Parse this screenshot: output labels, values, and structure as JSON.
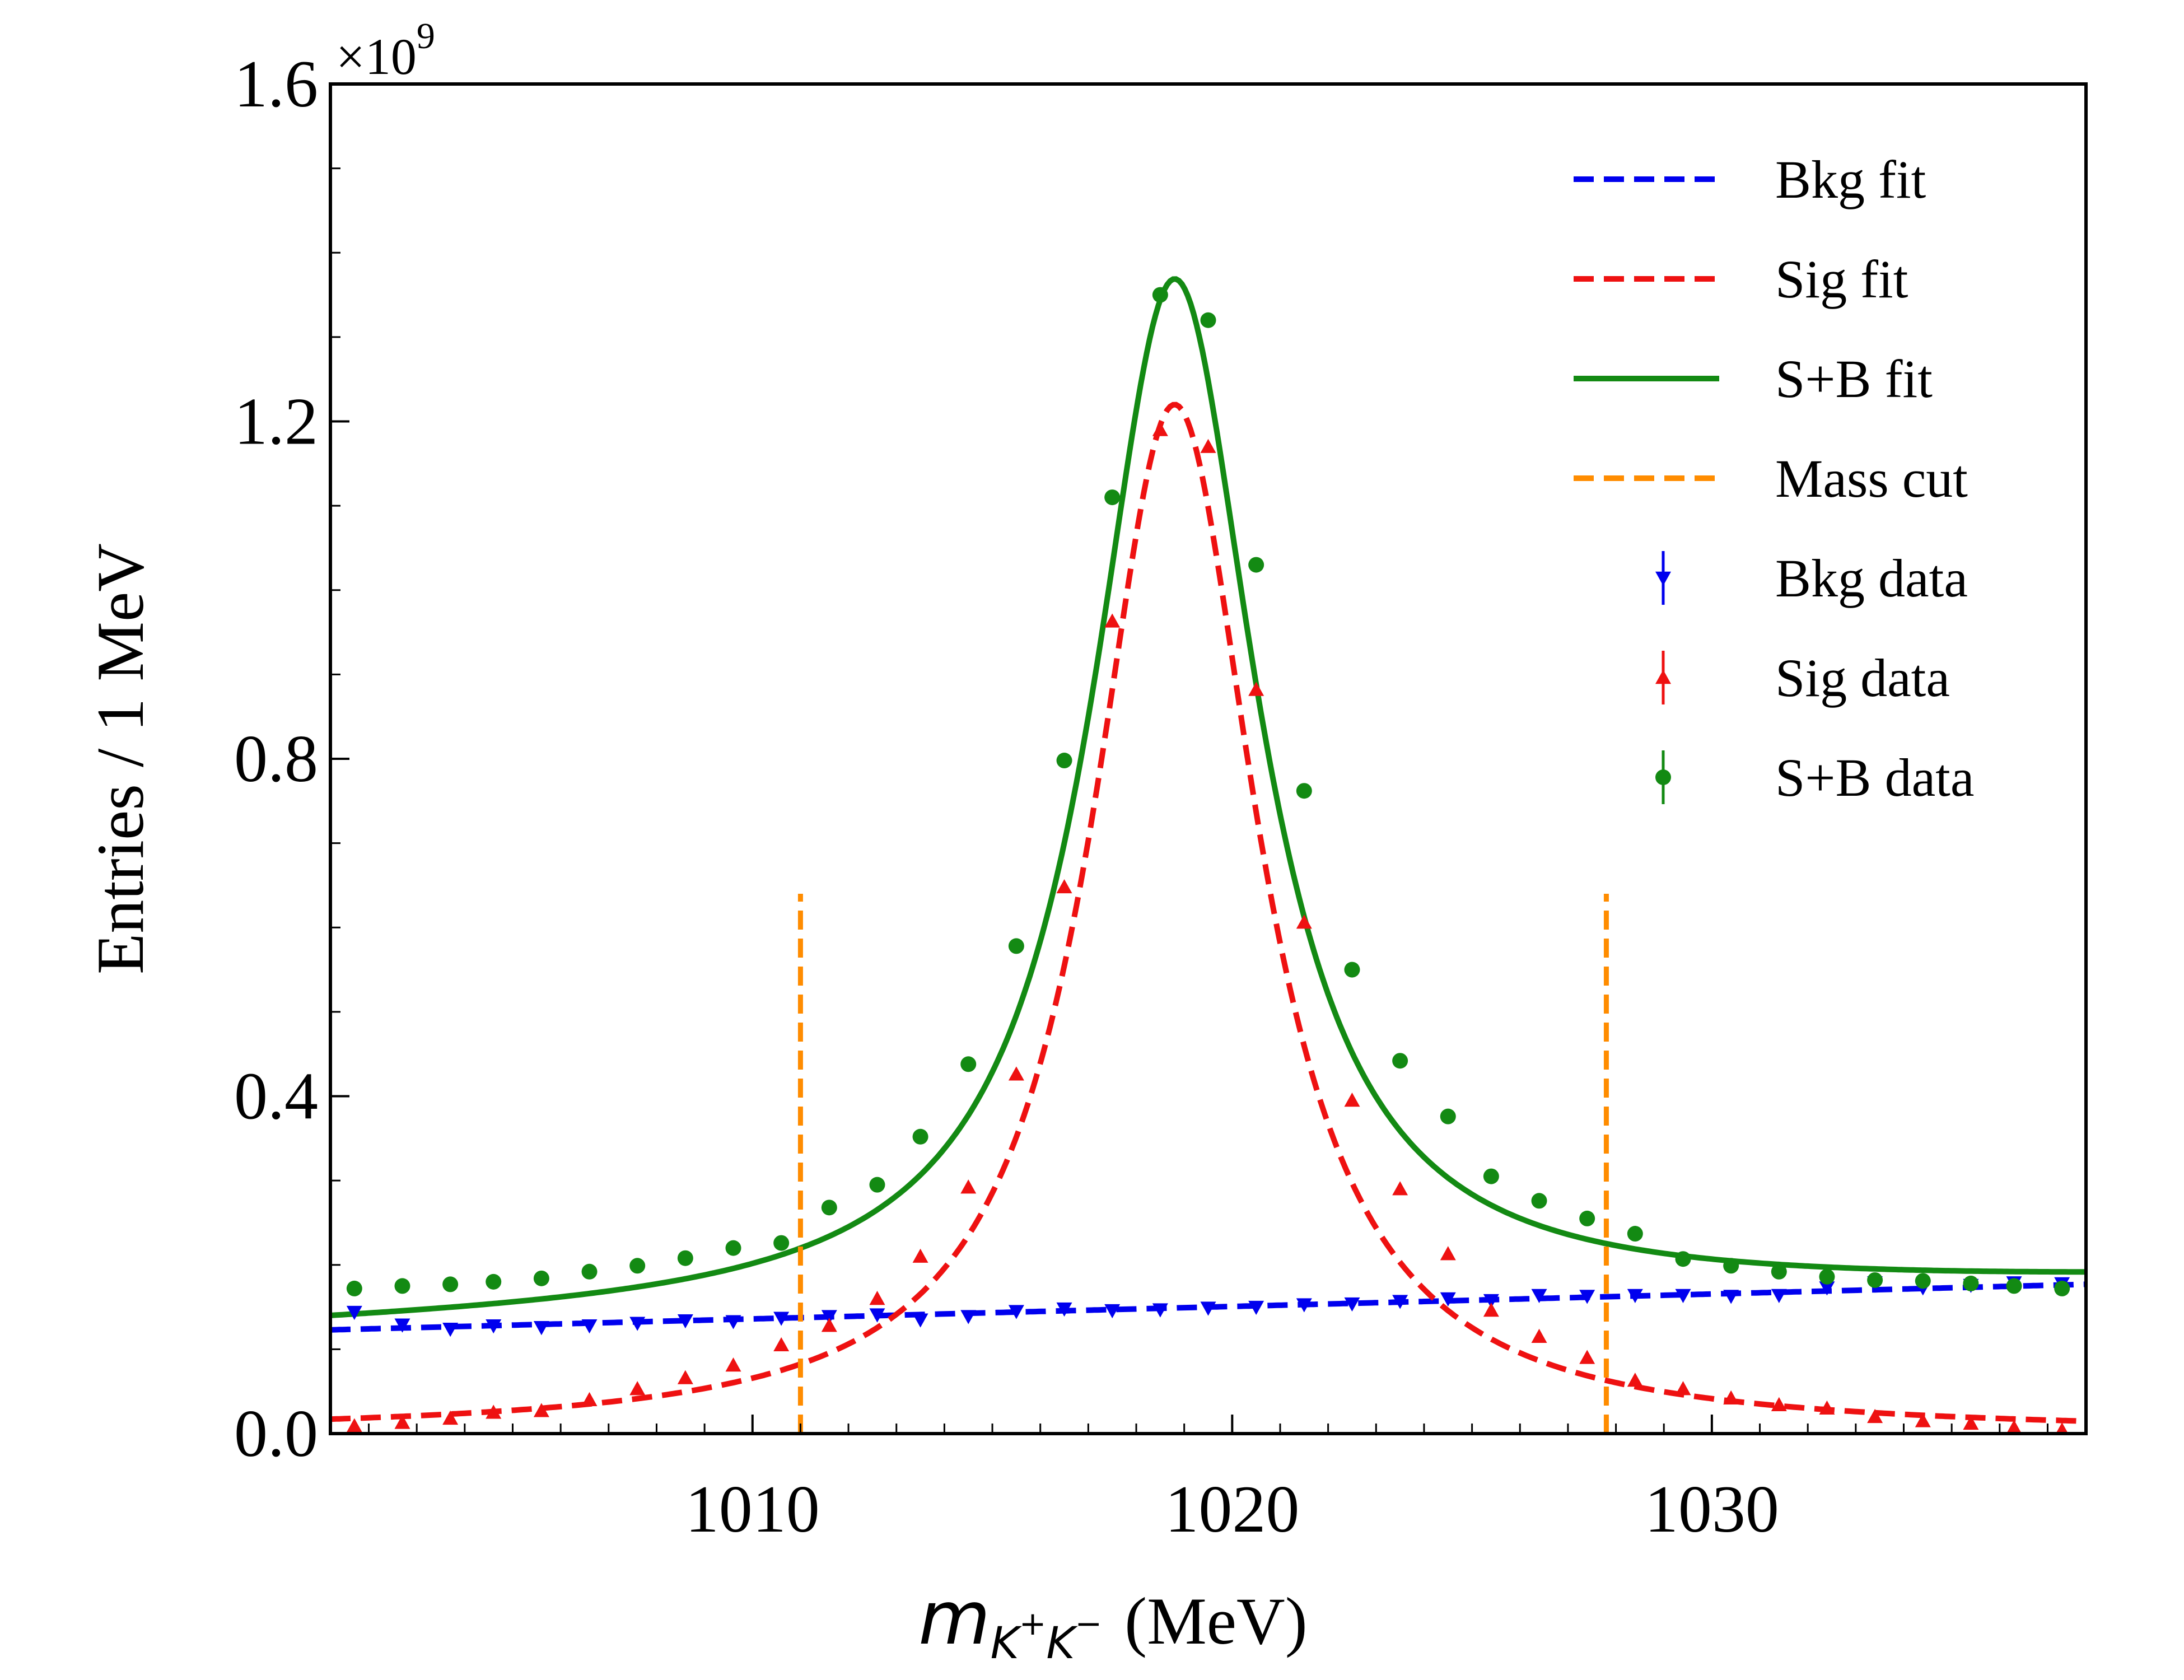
{
  "chart_data": {
    "type": "line",
    "xlabel": "(MeV)",
    "xlabel_math": "m",
    "xlabel_sub": "K",
    "xlabel_sub_sup1": "+",
    "xlabel_sub2": "K",
    "xlabel_sub_sup2": "−",
    "ylabel": "Entries / 1 MeV",
    "y_multiplier": "×10",
    "y_multiplier_exp": "9",
    "xlim": [
      1001.2,
      1037.8
    ],
    "ylim": [
      0,
      1.6
    ],
    "x_ticks": [
      1010,
      1020,
      1030
    ],
    "x_tick_labels": [
      "1010",
      "1020",
      "1030"
    ],
    "y_ticks": [
      0.0,
      0.4,
      0.8,
      1.2,
      1.6
    ],
    "y_tick_labels": [
      "0.0",
      "0.4",
      "0.8",
      "1.2",
      "1.6"
    ],
    "legend_position": "upper right",
    "mass_cut": {
      "x": [
        1011.0,
        1027.8
      ],
      "ymax": 0.64
    },
    "fits": [
      {
        "name": "Bkg fit",
        "color": "#0000ee",
        "style": "dashed",
        "model": "linear",
        "params": {
          "y_at_xmin": 0.123,
          "y_at_xmax": 0.177
        }
      },
      {
        "name": "Sig fit",
        "color": "#ee1111",
        "style": "dashed",
        "model": "lorentzian",
        "params": {
          "peak": 1.22,
          "center": 1018.8,
          "gamma": 2.1
        }
      },
      {
        "name": "S+B fit",
        "color": "#138a13",
        "style": "solid",
        "model": "sum"
      },
      {
        "name": "Mass cut",
        "color": "#ff8c00",
        "style": "dashed",
        "model": "vline"
      }
    ],
    "series": [
      {
        "name": "Bkg data",
        "marker": "triangle-down",
        "color": "#0000ee",
        "x": [
          1001.7,
          1002.7,
          1003.7,
          1004.6,
          1005.6,
          1006.6,
          1007.6,
          1008.6,
          1009.6,
          1010.6,
          1011.6,
          1012.6,
          1013.5,
          1014.5,
          1015.5,
          1016.5,
          1017.5,
          1018.5,
          1019.5,
          1020.5,
          1021.5,
          1022.5,
          1023.5,
          1024.5,
          1025.4,
          1026.4,
          1027.4,
          1028.4,
          1029.4,
          1030.4,
          1031.4,
          1032.4,
          1033.4,
          1034.4,
          1035.4,
          1036.3,
          1037.3
        ],
        "y": [
          0.144,
          0.129,
          0.124,
          0.128,
          0.126,
          0.128,
          0.131,
          0.134,
          0.133,
          0.137,
          0.139,
          0.141,
          0.135,
          0.139,
          0.145,
          0.148,
          0.146,
          0.147,
          0.149,
          0.15,
          0.153,
          0.154,
          0.157,
          0.16,
          0.158,
          0.164,
          0.163,
          0.164,
          0.164,
          0.163,
          0.164,
          0.173,
          0.179,
          0.173,
          0.176,
          0.179,
          0.178
        ]
      },
      {
        "name": "Sig data",
        "marker": "triangle-up",
        "color": "#ee1111",
        "x": [
          1001.7,
          1002.7,
          1003.7,
          1004.6,
          1005.6,
          1006.6,
          1007.6,
          1008.6,
          1009.6,
          1010.6,
          1011.6,
          1012.6,
          1013.5,
          1014.5,
          1015.5,
          1016.5,
          1017.5,
          1018.5,
          1019.5,
          1020.5,
          1021.5,
          1022.5,
          1023.5,
          1024.5,
          1025.4,
          1026.4,
          1027.4,
          1028.4,
          1029.4,
          1030.4,
          1031.4,
          1032.4,
          1033.4,
          1034.4,
          1035.4,
          1036.3,
          1037.3
        ],
        "y": [
          0.009,
          0.013,
          0.018,
          0.025,
          0.027,
          0.04,
          0.053,
          0.066,
          0.081,
          0.105,
          0.128,
          0.16,
          0.21,
          0.292,
          0.426,
          0.648,
          0.963,
          1.19,
          1.17,
          0.882,
          0.606,
          0.395,
          0.29,
          0.213,
          0.146,
          0.115,
          0.09,
          0.063,
          0.053,
          0.042,
          0.034,
          0.03,
          0.02,
          0.015,
          0.012,
          0.007,
          0.004
        ]
      },
      {
        "name": "S+B data",
        "marker": "circle",
        "color": "#138a13",
        "x": [
          1001.7,
          1002.7,
          1003.7,
          1004.6,
          1005.6,
          1006.6,
          1007.6,
          1008.6,
          1009.6,
          1010.6,
          1011.6,
          1012.6,
          1013.5,
          1014.5,
          1015.5,
          1016.5,
          1017.5,
          1018.5,
          1019.5,
          1020.5,
          1021.5,
          1022.5,
          1023.5,
          1024.5,
          1025.4,
          1026.4,
          1027.4,
          1028.4,
          1029.4,
          1030.4,
          1031.4,
          1032.4,
          1033.4,
          1034.4,
          1035.4,
          1036.3,
          1037.3
        ],
        "y": [
          0.172,
          0.175,
          0.177,
          0.18,
          0.184,
          0.192,
          0.199,
          0.208,
          0.22,
          0.226,
          0.268,
          0.295,
          0.352,
          0.438,
          0.578,
          0.798,
          1.11,
          1.35,
          1.32,
          1.03,
          0.762,
          0.55,
          0.442,
          0.376,
          0.305,
          0.276,
          0.255,
          0.237,
          0.207,
          0.199,
          0.192,
          0.186,
          0.182,
          0.181,
          0.178,
          0.175,
          0.172
        ]
      }
    ]
  }
}
